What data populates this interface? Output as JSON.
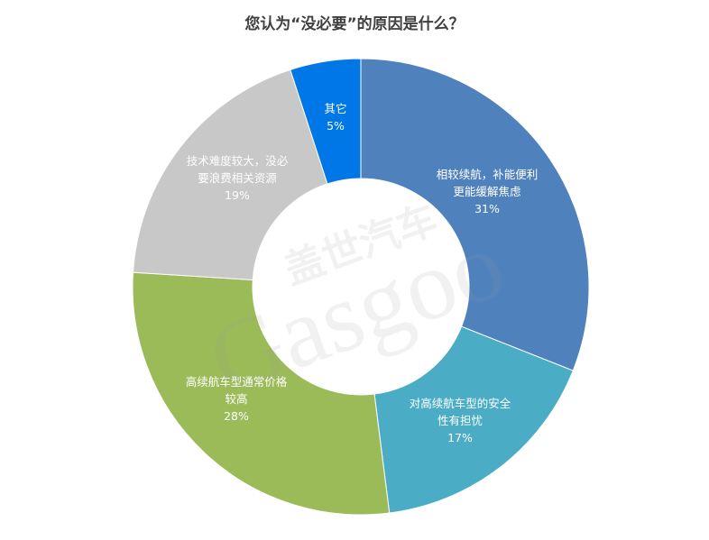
{
  "chart_data": {
    "type": "pie",
    "variant": "donut",
    "title": "您认为“没必要”的原因是什么？",
    "slices": [
      {
        "label_lines": [
          "相较续航，补能便利",
          "更能缓解焦虑"
        ],
        "value": 31,
        "value_label": "31%",
        "color": "#4F81BD"
      },
      {
        "label_lines": [
          "对高续航车型的安全",
          "性有担忧"
        ],
        "value": 17,
        "value_label": "17%",
        "color": "#4BACC6"
      },
      {
        "label_lines": [
          "高续航车型通常价格",
          "较高"
        ],
        "value": 28,
        "value_label": "28%",
        "color": "#9BBB59"
      },
      {
        "label_lines": [
          "技术难度较大，没必",
          "要浪费相关资源"
        ],
        "value": 19,
        "value_label": "19%",
        "color": "#C8C8C8"
      },
      {
        "label_lines": [
          "其它"
        ],
        "value": 5,
        "value_label": "5%",
        "color": "#0077E6"
      }
    ],
    "legend": "none",
    "data_labels": "inside"
  },
  "watermark": {
    "text": "盖世汽车",
    "brand": "Gasgoo"
  }
}
